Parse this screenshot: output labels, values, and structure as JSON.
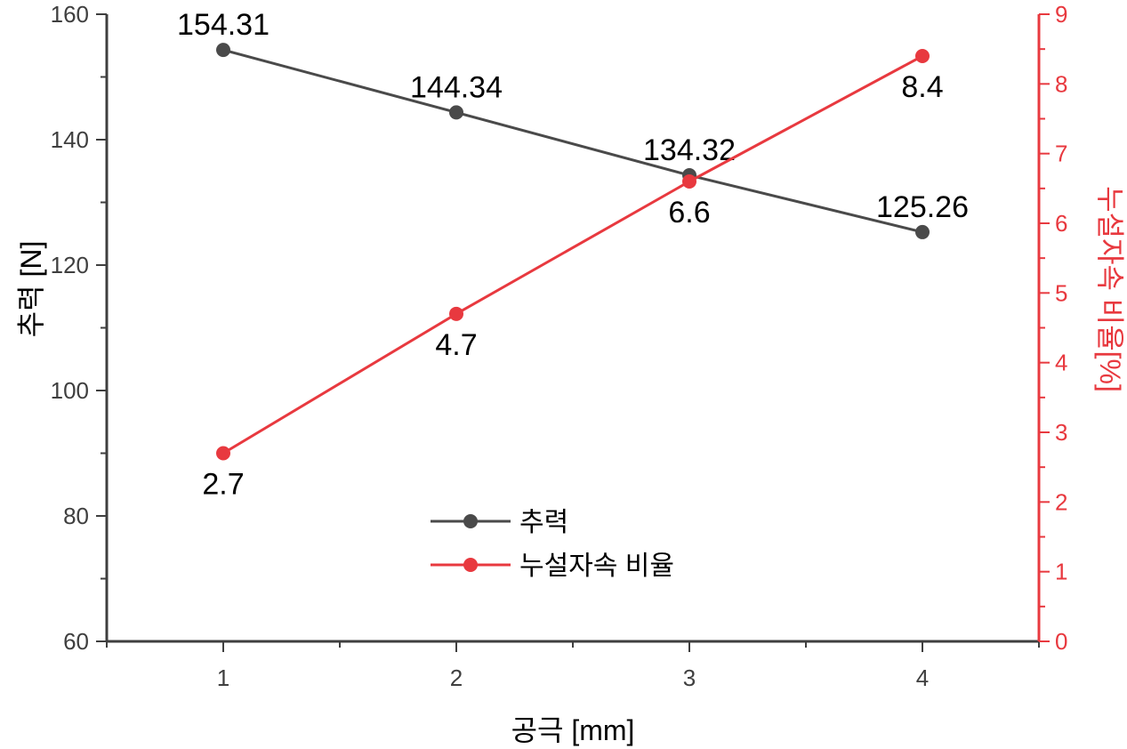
{
  "chart_data": {
    "type": "line",
    "x": [
      1,
      2,
      3,
      4
    ],
    "xlabel": "공극 [mm]",
    "xlim": [
      0.5,
      4.5
    ],
    "x_ticks": [
      "1",
      "2",
      "3",
      "4"
    ],
    "ylabel_left": "추력 [N]",
    "ylim_left": [
      60,
      160
    ],
    "y_ticks_left": [
      "60",
      "80",
      "100",
      "120",
      "140",
      "160"
    ],
    "ylabel_right": "누설자속 비율[%]",
    "ylim_right": [
      0,
      9
    ],
    "y_ticks_right": [
      "0",
      "1",
      "2",
      "3",
      "4",
      "5",
      "6",
      "7",
      "8",
      "9"
    ],
    "series": [
      {
        "name": "추력",
        "axis": "left",
        "color": "#4a4a4a",
        "values": [
          154.31,
          144.34,
          134.32,
          125.26
        ],
        "labels": [
          "154.31",
          "144.34",
          "134.32",
          "125.26"
        ],
        "label_position": "above"
      },
      {
        "name": "누설자속 비율",
        "axis": "right",
        "color": "#e8393f",
        "values": [
          2.7,
          4.7,
          6.6,
          8.4
        ],
        "labels": [
          "2.7",
          "4.7",
          "6.6",
          "8.4"
        ],
        "label_position": "below"
      }
    ],
    "legend": {
      "placement": "bottom-center",
      "entries": [
        "추력",
        "누설자속 비율"
      ]
    },
    "grid": false,
    "colors": {
      "left_axis": "#3f3f3f",
      "right_axis": "#e8393f",
      "bottom_axis": "#3f3f3f"
    }
  }
}
